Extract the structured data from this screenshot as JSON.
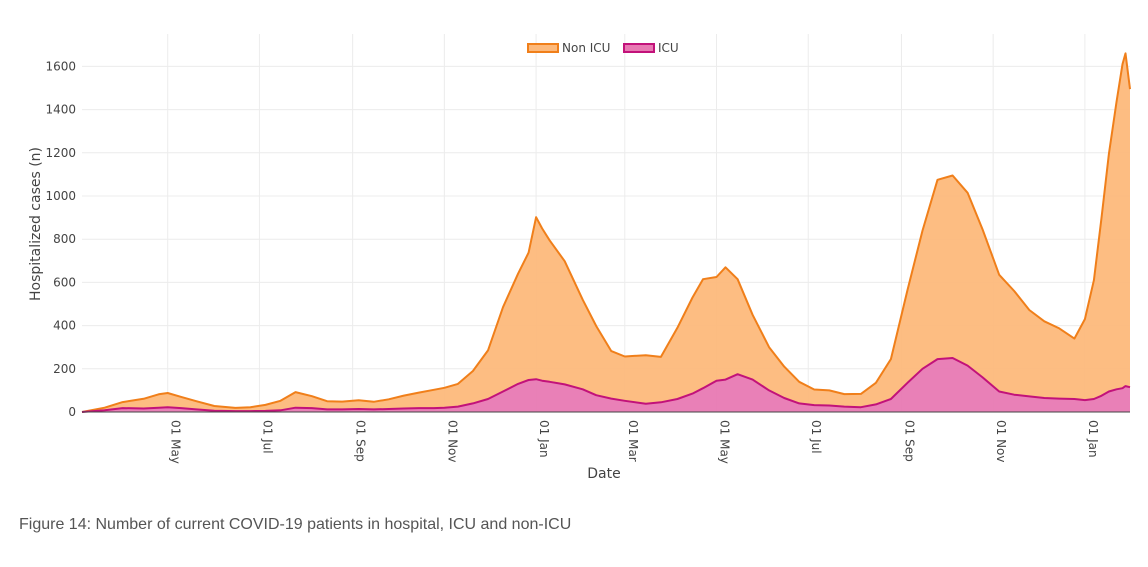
{
  "caption": "Figure 14: Number of current COVID-19 patients in hospital, ICU and non-ICU",
  "chart_data": {
    "type": "area",
    "stacked": true,
    "title": "",
    "xlabel": "Date",
    "ylabel": "Hospitalized cases (n)",
    "xlim": [
      "2020-03-05",
      "2022-01-31"
    ],
    "ylim": [
      0,
      1750
    ],
    "y_ticks": [
      0,
      200,
      400,
      600,
      800,
      1000,
      1200,
      1400,
      1600
    ],
    "x_ticks": [
      {
        "date": "2020-05-01",
        "label": "01 May"
      },
      {
        "date": "2020-07-01",
        "label": "01 Jul"
      },
      {
        "date": "2020-09-01",
        "label": "01 Sep"
      },
      {
        "date": "2020-11-01",
        "label": "01 Nov"
      },
      {
        "date": "2021-01-01",
        "label": "01 Jan"
      },
      {
        "date": "2021-03-01",
        "label": "01 Mar"
      },
      {
        "date": "2021-05-01",
        "label": "01 May"
      },
      {
        "date": "2021-07-01",
        "label": "01 Jul"
      },
      {
        "date": "2021-09-01",
        "label": "01 Sep"
      },
      {
        "date": "2021-11-01",
        "label": "01 Nov"
      },
      {
        "date": "2022-01-01",
        "label": "01 Jan"
      }
    ],
    "grid": true,
    "legend_position": "top-center",
    "series": [
      {
        "name": "Non ICU",
        "stroke": "#f07f1a",
        "fill": "#fdb97b",
        "points": [
          [
            "2020-03-05",
            0
          ],
          [
            "2020-03-20",
            12
          ],
          [
            "2020-04-01",
            28
          ],
          [
            "2020-04-15",
            45
          ],
          [
            "2020-04-25",
            62
          ],
          [
            "2020-05-01",
            66
          ],
          [
            "2020-05-10",
            52
          ],
          [
            "2020-05-20",
            38
          ],
          [
            "2020-06-01",
            22
          ],
          [
            "2020-06-15",
            15
          ],
          [
            "2020-06-25",
            18
          ],
          [
            "2020-07-05",
            28
          ],
          [
            "2020-07-15",
            44
          ],
          [
            "2020-07-25",
            72
          ],
          [
            "2020-08-05",
            55
          ],
          [
            "2020-08-15",
            38
          ],
          [
            "2020-08-25",
            36
          ],
          [
            "2020-09-05",
            40
          ],
          [
            "2020-09-15",
            35
          ],
          [
            "2020-09-25",
            45
          ],
          [
            "2020-10-05",
            60
          ],
          [
            "2020-10-15",
            72
          ],
          [
            "2020-10-25",
            85
          ],
          [
            "2020-11-01",
            92
          ],
          [
            "2020-11-10",
            105
          ],
          [
            "2020-11-20",
            150
          ],
          [
            "2020-11-30",
            225
          ],
          [
            "2020-12-10",
            390
          ],
          [
            "2020-12-20",
            510
          ],
          [
            "2020-12-27",
            590
          ],
          [
            "2021-01-01",
            750
          ],
          [
            "2021-01-05",
            705
          ],
          [
            "2021-01-10",
            655
          ],
          [
            "2021-01-20",
            570
          ],
          [
            "2021-02-01",
            415
          ],
          [
            "2021-02-10",
            320
          ],
          [
            "2021-02-20",
            220
          ],
          [
            "2021-03-01",
            205
          ],
          [
            "2021-03-15",
            225
          ],
          [
            "2021-03-25",
            210
          ],
          [
            "2021-04-05",
            330
          ],
          [
            "2021-04-15",
            445
          ],
          [
            "2021-04-22",
            505
          ],
          [
            "2021-05-01",
            480
          ],
          [
            "2021-05-07",
            520
          ],
          [
            "2021-05-15",
            440
          ],
          [
            "2021-05-25",
            300
          ],
          [
            "2021-06-05",
            200
          ],
          [
            "2021-06-15",
            145
          ],
          [
            "2021-06-25",
            100
          ],
          [
            "2021-07-05",
            72
          ],
          [
            "2021-07-15",
            70
          ],
          [
            "2021-07-25",
            58
          ],
          [
            "2021-08-05",
            62
          ],
          [
            "2021-08-15",
            100
          ],
          [
            "2021-08-25",
            185
          ],
          [
            "2021-09-05",
            430
          ],
          [
            "2021-09-15",
            640
          ],
          [
            "2021-09-25",
            830
          ],
          [
            "2021-10-05",
            845
          ],
          [
            "2021-10-15",
            800
          ],
          [
            "2021-10-25",
            685
          ],
          [
            "2021-11-05",
            540
          ],
          [
            "2021-11-15",
            480
          ],
          [
            "2021-11-25",
            400
          ],
          [
            "2021-12-05",
            355
          ],
          [
            "2021-12-15",
            325
          ],
          [
            "2021-12-25",
            280
          ],
          [
            "2022-01-01",
            375
          ],
          [
            "2022-01-07",
            550
          ],
          [
            "2022-01-12",
            820
          ],
          [
            "2022-01-17",
            1100
          ],
          [
            "2022-01-22",
            1330
          ],
          [
            "2022-01-26",
            1500
          ],
          [
            "2022-01-28",
            1540
          ],
          [
            "2022-01-31",
            1380
          ]
        ]
      },
      {
        "name": "ICU",
        "stroke": "#c2127a",
        "fill": "#e879b3",
        "points": [
          [
            "2020-03-05",
            0
          ],
          [
            "2020-03-20",
            8
          ],
          [
            "2020-04-01",
            18
          ],
          [
            "2020-04-15",
            16
          ],
          [
            "2020-04-25",
            20
          ],
          [
            "2020-05-01",
            22
          ],
          [
            "2020-05-10",
            18
          ],
          [
            "2020-05-20",
            12
          ],
          [
            "2020-06-01",
            6
          ],
          [
            "2020-06-15",
            4
          ],
          [
            "2020-06-25",
            4
          ],
          [
            "2020-07-05",
            5
          ],
          [
            "2020-07-15",
            8
          ],
          [
            "2020-07-25",
            20
          ],
          [
            "2020-08-05",
            18
          ],
          [
            "2020-08-15",
            12
          ],
          [
            "2020-08-25",
            12
          ],
          [
            "2020-09-05",
            14
          ],
          [
            "2020-09-15",
            12
          ],
          [
            "2020-09-25",
            14
          ],
          [
            "2020-10-05",
            16
          ],
          [
            "2020-10-15",
            18
          ],
          [
            "2020-10-25",
            18
          ],
          [
            "2020-11-01",
            20
          ],
          [
            "2020-11-10",
            25
          ],
          [
            "2020-11-20",
            40
          ],
          [
            "2020-11-30",
            60
          ],
          [
            "2020-12-10",
            95
          ],
          [
            "2020-12-20",
            130
          ],
          [
            "2020-12-27",
            148
          ],
          [
            "2021-01-01",
            152
          ],
          [
            "2021-01-05",
            145
          ],
          [
            "2021-01-10",
            140
          ],
          [
            "2021-01-20",
            128
          ],
          [
            "2021-02-01",
            105
          ],
          [
            "2021-02-10",
            78
          ],
          [
            "2021-02-20",
            62
          ],
          [
            "2021-03-01",
            52
          ],
          [
            "2021-03-15",
            38
          ],
          [
            "2021-03-25",
            45
          ],
          [
            "2021-04-05",
            60
          ],
          [
            "2021-04-15",
            85
          ],
          [
            "2021-04-22",
            110
          ],
          [
            "2021-05-01",
            145
          ],
          [
            "2021-05-07",
            150
          ],
          [
            "2021-05-15",
            175
          ],
          [
            "2021-05-25",
            150
          ],
          [
            "2021-06-05",
            100
          ],
          [
            "2021-06-15",
            65
          ],
          [
            "2021-06-25",
            40
          ],
          [
            "2021-07-05",
            32
          ],
          [
            "2021-07-15",
            30
          ],
          [
            "2021-07-25",
            25
          ],
          [
            "2021-08-05",
            22
          ],
          [
            "2021-08-15",
            35
          ],
          [
            "2021-08-25",
            60
          ],
          [
            "2021-09-05",
            135
          ],
          [
            "2021-09-15",
            200
          ],
          [
            "2021-09-25",
            245
          ],
          [
            "2021-10-05",
            250
          ],
          [
            "2021-10-15",
            215
          ],
          [
            "2021-10-25",
            160
          ],
          [
            "2021-11-05",
            95
          ],
          [
            "2021-11-15",
            80
          ],
          [
            "2021-11-25",
            72
          ],
          [
            "2021-12-05",
            65
          ],
          [
            "2021-12-15",
            62
          ],
          [
            "2021-12-25",
            60
          ],
          [
            "2022-01-01",
            55
          ],
          [
            "2022-01-07",
            60
          ],
          [
            "2022-01-12",
            75
          ],
          [
            "2022-01-17",
            95
          ],
          [
            "2022-01-22",
            105
          ],
          [
            "2022-01-26",
            110
          ],
          [
            "2022-01-28",
            120
          ],
          [
            "2022-01-31",
            115
          ]
        ]
      }
    ]
  }
}
